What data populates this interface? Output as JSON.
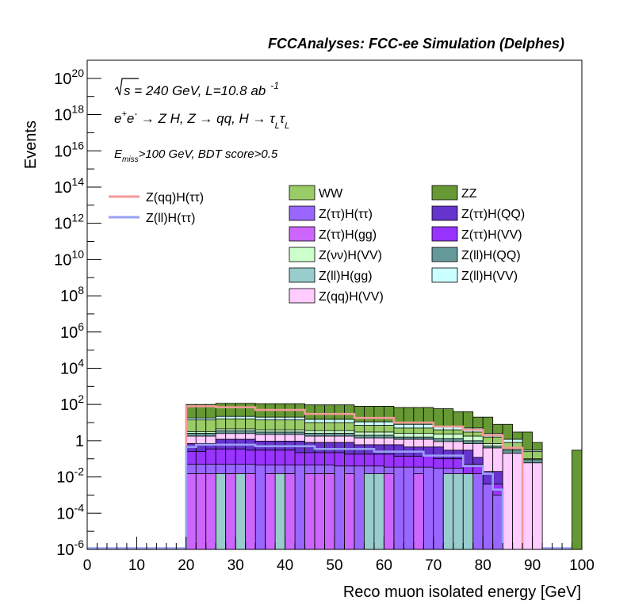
{
  "header": "FCCAnalyses: FCC-ee Simulation (Delphes)",
  "annotations": {
    "sqrt_s": "s",
    "energy_lumi": " = 240 GeV, L=10.8 ab",
    "lumi_exp": "-1",
    "process": {
      "e1": "e",
      "e1_sup": "+",
      "e2": "e",
      "e2_sup": "-",
      "body": " → Z H, Z  → qq, H  → ",
      "tau": "τ",
      "tau_sub": "L"
    },
    "cut": {
      "E": "E",
      "E_sub": "miss",
      "rest": ">100 GeV, BDT score>0.5"
    }
  },
  "legend": {
    "lines": [
      {
        "label": "Z(qq)H(ττ)",
        "color": "#f59a9a"
      },
      {
        "label": "Z(ll)H(ττ)",
        "color": "#9aa0f5"
      }
    ],
    "fills": [
      {
        "label": "WW",
        "color": "#99cc66"
      },
      {
        "label": "ZZ",
        "color": "#669933"
      },
      {
        "label": "Z(ττ)H(ττ)",
        "color": "#9966ff"
      },
      {
        "label": "Z(ττ)H(QQ)",
        "color": "#6633cc"
      },
      {
        "label": "Z(ττ)H(gg)",
        "color": "#cc66ff"
      },
      {
        "label": "Z(ττ)H(VV)",
        "color": "#9933ff"
      },
      {
        "label": "Z(νν)H(VV)",
        "color": "#ccffcc"
      },
      {
        "label": "Z(ll)H(QQ)",
        "color": "#669999"
      },
      {
        "label": "Z(ll)H(gg)",
        "color": "#99cccc"
      },
      {
        "label": "Z(ll)H(VV)",
        "color": "#ccffff"
      },
      {
        "label": "Z(qq)H(VV)",
        "color": "#ffccff"
      }
    ]
  },
  "chart_data": {
    "type": "bar",
    "histogram": "stacked",
    "xlabel": "Reco muon isolated energy [GeV]",
    "ylabel": "Events",
    "xlim": [
      0,
      100
    ],
    "ylim": [
      1e-06,
      1e+21
    ],
    "log_y": true,
    "grid": false,
    "bin_width": 2,
    "x_ticks": [
      "0",
      "10",
      "20",
      "30",
      "40",
      "50",
      "60",
      "70",
      "80",
      "90",
      "100"
    ],
    "y_ticks": [
      {
        "base": "10",
        "exp": "-6"
      },
      {
        "base": "10",
        "exp": "-4"
      },
      {
        "base": "10",
        "exp": "-2"
      },
      {
        "base": "1",
        "exp": ""
      },
      {
        "base": "10",
        "exp": "2"
      },
      {
        "base": "10",
        "exp": "4"
      },
      {
        "base": "10",
        "exp": "6"
      },
      {
        "base": "10",
        "exp": "8"
      },
      {
        "base": "10",
        "exp": "10"
      },
      {
        "base": "10",
        "exp": "12"
      },
      {
        "base": "10",
        "exp": "14"
      },
      {
        "base": "10",
        "exp": "16"
      },
      {
        "base": "10",
        "exp": "18"
      },
      {
        "base": "10",
        "exp": "20"
      }
    ],
    "stacked_series": [
      {
        "name": "Z(ττ)H(gg)",
        "color": "#cc66ff",
        "bins": [
          [
            20,
            22,
            0.015
          ],
          [
            22,
            24,
            0.015
          ],
          [
            24,
            26,
            0.015
          ],
          [
            28,
            30,
            0.015
          ],
          [
            32,
            34,
            0.015
          ],
          [
            36,
            38,
            0.015
          ],
          [
            40,
            42,
            0.015
          ],
          [
            44,
            46,
            0.015
          ],
          [
            46,
            48,
            0.015
          ],
          [
            48,
            50,
            0.015
          ],
          [
            52,
            54,
            0.015
          ],
          [
            60,
            62,
            0.015
          ],
          [
            66,
            68,
            0.015
          ]
        ]
      },
      {
        "name": "Z(ll)H(gg)",
        "color": "#99cccc",
        "bins": [
          [
            26,
            32,
            0.015
          ],
          [
            36,
            42,
            0.015
          ],
          [
            48,
            50,
            0.015
          ],
          [
            56,
            60,
            0.015
          ],
          [
            72,
            78,
            0.015
          ]
        ]
      },
      {
        "name": "Z(ττ)H(ττ)",
        "color": "#9966ff",
        "total_after": [
          [
            20,
            34,
            0.05
          ],
          [
            34,
            50,
            0.045
          ],
          [
            50,
            60,
            0.04
          ],
          [
            60,
            70,
            0.035
          ],
          [
            70,
            76,
            0.03
          ],
          [
            76,
            80,
            0.015
          ],
          [
            80,
            82,
            0.004
          ],
          [
            82,
            84,
            0.001
          ]
        ]
      },
      {
        "name": "Z(ττ)H(VV)",
        "color": "#9933ff",
        "total_after": [
          [
            20,
            24,
            0.25
          ],
          [
            24,
            32,
            0.35
          ],
          [
            32,
            42,
            0.3
          ],
          [
            42,
            52,
            0.22
          ],
          [
            52,
            62,
            0.18
          ],
          [
            62,
            70,
            0.14
          ],
          [
            70,
            76,
            0.1
          ],
          [
            76,
            80,
            0.05
          ],
          [
            80,
            84,
            0.004
          ]
        ]
      },
      {
        "name": "Z(ττ)H(QQ)",
        "color": "#6633cc",
        "total_after": [
          [
            20,
            26,
            0.7
          ],
          [
            26,
            34,
            1.2
          ],
          [
            34,
            44,
            0.95
          ],
          [
            44,
            54,
            0.8
          ],
          [
            54,
            64,
            0.6
          ],
          [
            64,
            72,
            0.45
          ],
          [
            72,
            78,
            0.3
          ],
          [
            78,
            80,
            0.12
          ],
          [
            80,
            84,
            0.02
          ]
        ]
      },
      {
        "name": "Z(qq)H(VV)",
        "color": "#ffccff",
        "total_after": [
          [
            20,
            26,
            1.8
          ],
          [
            26,
            34,
            2.5
          ],
          [
            34,
            44,
            2.2
          ],
          [
            44,
            54,
            1.8
          ],
          [
            54,
            62,
            1.4
          ],
          [
            62,
            70,
            1.2
          ],
          [
            70,
            76,
            0.9
          ],
          [
            76,
            80,
            0.7
          ],
          [
            80,
            84,
            0.4
          ],
          [
            84,
            88,
            0.2
          ],
          [
            88,
            92,
            0.06
          ]
        ]
      },
      {
        "name": "Z(ll)H(QQ)",
        "color": "#669999",
        "total_after": [
          [
            20,
            26,
            2.6
          ],
          [
            26,
            34,
            3.5
          ],
          [
            34,
            44,
            3.0
          ],
          [
            44,
            54,
            2.6
          ],
          [
            54,
            62,
            2.0
          ],
          [
            62,
            70,
            1.6
          ],
          [
            70,
            76,
            1.3
          ],
          [
            76,
            80,
            1.0
          ],
          [
            80,
            84,
            0.5
          ],
          [
            84,
            88,
            0.3
          ],
          [
            88,
            92,
            0.09
          ]
        ]
      },
      {
        "name": "Z(νν)H(VV)",
        "color": "#ccffcc",
        "total_after": [
          [
            20,
            26,
            3.2
          ],
          [
            26,
            34,
            4.5
          ],
          [
            34,
            44,
            4.0
          ],
          [
            44,
            54,
            3.6
          ],
          [
            54,
            62,
            3.0
          ],
          [
            62,
            70,
            2.6
          ],
          [
            70,
            76,
            2.3
          ],
          [
            76,
            80,
            1.8
          ],
          [
            80,
            84,
            0.7
          ],
          [
            84,
            88,
            0.35
          ],
          [
            88,
            92,
            0.1
          ]
        ]
      },
      {
        "name": "WW",
        "color": "#99cc66",
        "total_after": [
          [
            20,
            26,
            14
          ],
          [
            26,
            34,
            16
          ],
          [
            34,
            44,
            14
          ],
          [
            44,
            54,
            10
          ],
          [
            54,
            62,
            7
          ],
          [
            62,
            70,
            5
          ],
          [
            70,
            76,
            4
          ],
          [
            76,
            80,
            3
          ],
          [
            80,
            84,
            1.6
          ],
          [
            84,
            88,
            0.8
          ],
          [
            88,
            92,
            0.25
          ]
        ]
      },
      {
        "name": "Z(ll)H(VV)",
        "color": "#ccffff",
        "total_after": [
          [
            20,
            26,
            18
          ],
          [
            26,
            34,
            22
          ],
          [
            34,
            44,
            20
          ],
          [
            44,
            54,
            15
          ],
          [
            54,
            62,
            11
          ],
          [
            62,
            70,
            8
          ],
          [
            70,
            76,
            6
          ],
          [
            76,
            80,
            5
          ],
          [
            80,
            84,
            2.5
          ],
          [
            84,
            88,
            1.2
          ],
          [
            88,
            92,
            0.3
          ]
        ]
      },
      {
        "name": "ZZ",
        "color": "#669933",
        "total_after": [
          [
            20,
            26,
            100
          ],
          [
            26,
            34,
            115
          ],
          [
            34,
            44,
            110
          ],
          [
            44,
            54,
            95
          ],
          [
            54,
            62,
            80
          ],
          [
            62,
            70,
            68
          ],
          [
            70,
            74,
            58
          ],
          [
            74,
            78,
            40
          ],
          [
            78,
            82,
            20
          ],
          [
            82,
            86,
            8
          ],
          [
            86,
            90,
            3
          ],
          [
            90,
            92,
            0.8
          ],
          [
            98,
            100,
            0.3
          ]
        ]
      }
    ],
    "line_series": [
      {
        "name": "Z(qq)H(ττ)",
        "color": "#f59a9a",
        "bins": [
          [
            20,
            26,
            80
          ],
          [
            26,
            34,
            70
          ],
          [
            34,
            44,
            50
          ],
          [
            44,
            54,
            30
          ],
          [
            54,
            62,
            18
          ],
          [
            62,
            70,
            10
          ],
          [
            70,
            76,
            6
          ],
          [
            76,
            80,
            4
          ],
          [
            80,
            84,
            2
          ],
          [
            84,
            88,
            0.4
          ]
        ]
      },
      {
        "name": "Z(ll)H(ττ)",
        "color": "#9aa0f5",
        "bins": [
          [
            20,
            22,
            0.45
          ],
          [
            22,
            34,
            0.6
          ],
          [
            34,
            46,
            0.5
          ],
          [
            46,
            58,
            0.35
          ],
          [
            58,
            68,
            0.25
          ],
          [
            68,
            76,
            0.15
          ],
          [
            76,
            80,
            0.04
          ],
          [
            80,
            82,
            0.015
          ],
          [
            82,
            84,
            0.002
          ]
        ]
      }
    ]
  }
}
